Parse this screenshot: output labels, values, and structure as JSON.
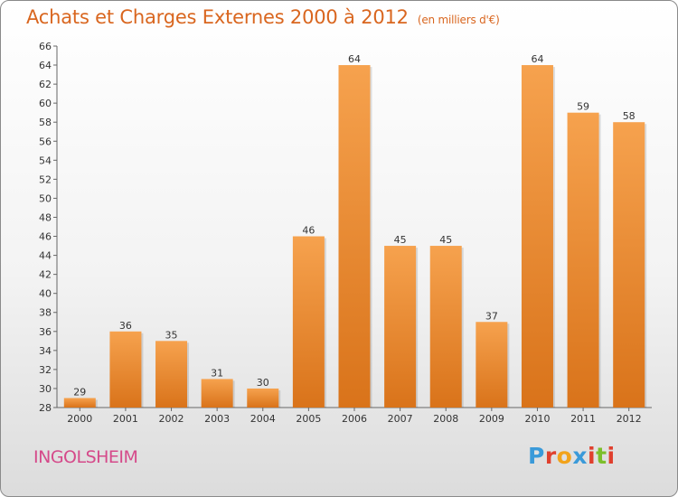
{
  "header": {
    "title": "Achats et Charges Externes 2000 à 2012",
    "unit": "(en milliers d'€)"
  },
  "footer": {
    "city": "INGOLSHEIM",
    "brand": "Proxiti"
  },
  "colors": {
    "bar_top": "#f6a24e",
    "bar_bottom": "#d9731a",
    "title": "#d9661f",
    "city": "#d54a8a",
    "axis": "#666666",
    "brand_letters": [
      "#3a9ad9",
      "#e0402e",
      "#f2a31b",
      "#3a9ad9",
      "#e0402e",
      "#7cbf2b",
      "#e0402e"
    ]
  },
  "chart_data": {
    "type": "bar",
    "title": "Achats et Charges Externes 2000 à 2012",
    "subtitle": "(en milliers d'€)",
    "categories": [
      "2000",
      "2001",
      "2002",
      "2003",
      "2004",
      "2005",
      "2006",
      "2007",
      "2008",
      "2009",
      "2010",
      "2011",
      "2012"
    ],
    "values": [
      29,
      36,
      35,
      31,
      30,
      46,
      64,
      45,
      45,
      37,
      64,
      59,
      58
    ],
    "xlabel": "",
    "ylabel": "",
    "ylim": [
      28,
      66
    ],
    "ytick_step": 2,
    "grid": false,
    "legend": "none",
    "data_labels": true
  }
}
